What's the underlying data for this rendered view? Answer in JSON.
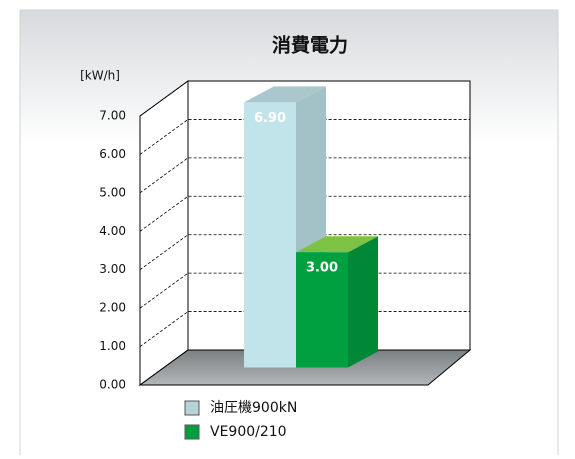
{
  "chart_data": {
    "type": "bar3d",
    "title": "消費電力",
    "y_label": "[kW/h]",
    "ylim": [
      0,
      7
    ],
    "yticks": [
      {
        "value": 0,
        "label": "0.00"
      },
      {
        "value": 1,
        "label": "1.00"
      },
      {
        "value": 2,
        "label": "2.00"
      },
      {
        "value": 3,
        "label": "3.00"
      },
      {
        "value": 4,
        "label": "4.00"
      },
      {
        "value": 5,
        "label": "5.00"
      },
      {
        "value": 6,
        "label": "6.00"
      },
      {
        "value": 7,
        "label": "7.00"
      }
    ],
    "grid": true,
    "series": [
      {
        "name": "油圧機900kN",
        "color": "#c0e4ea",
        "values": [
          6.9
        ],
        "value_labels": [
          "6.90"
        ]
      },
      {
        "name": "VE900/210",
        "color": "#00a040",
        "values": [
          3.0
        ],
        "value_labels": [
          "3.00"
        ]
      }
    ]
  }
}
